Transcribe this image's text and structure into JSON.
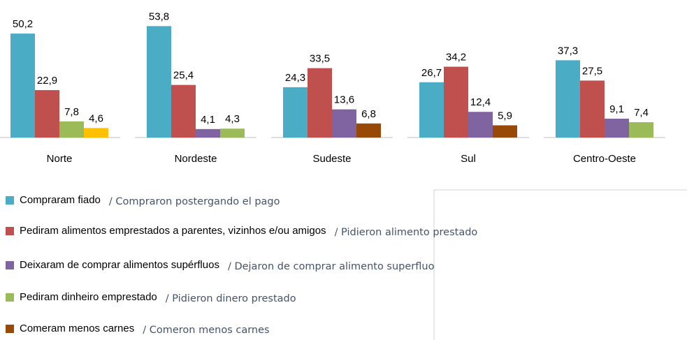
{
  "chart_data": {
    "type": "bar",
    "categories": [
      "Norte",
      "Nordeste",
      "Sudeste",
      "Sul",
      "Centro-Oeste"
    ],
    "ylim": [
      0,
      60
    ],
    "series": [
      {
        "name": "Compraram fiado",
        "translation": "/ Compraron postergando el pago",
        "color": "#4bacc6",
        "values": [
          50.2,
          53.8,
          24.3,
          26.7,
          37.3
        ],
        "value_labels": [
          "50,2",
          "53,8",
          "24,3",
          "26,7",
          "37,3"
        ]
      },
      {
        "name": "Pediram alimentos emprestados a parentes, vizinhos e/ou amigos",
        "translation": "/ Pidieron alimento prestado",
        "color": "#c0504d",
        "values": [
          22.9,
          25.4,
          33.5,
          34.2,
          27.5
        ],
        "value_labels": [
          "22,9",
          "25,4",
          "33,5",
          "34,2",
          "27,5"
        ]
      },
      {
        "name": "Deixaram de comprar alimentos supérfluos",
        "translation": "/ Dejaron de comprar alimento superfluo",
        "color": "#8064a2",
        "values": [
          null,
          4.1,
          13.6,
          12.4,
          9.1
        ],
        "value_labels": [
          null,
          "4,1",
          "13,6",
          "12,4",
          "9,1"
        ]
      },
      {
        "name": "Pediram dinheiro emprestado",
        "translation": "/ Pidieron dinero prestado",
        "color": "#9bbb59",
        "values": [
          7.8,
          4.3,
          null,
          null,
          7.4
        ],
        "value_labels": [
          "7,8",
          "4,3",
          null,
          null,
          "7,4"
        ]
      },
      {
        "name": "Comeram menos carnes",
        "translation": "/ Comeron menos carnes",
        "color": "#984807",
        "values": [
          null,
          null,
          6.8,
          5.9,
          null
        ],
        "value_labels": [
          null,
          null,
          "6,8",
          "5,9",
          null
        ]
      },
      {
        "color": "#ffc000",
        "values": [
          4.6,
          null,
          null,
          null,
          null
        ],
        "value_labels": [
          "4,6",
          null,
          null,
          null,
          null
        ]
      }
    ]
  }
}
